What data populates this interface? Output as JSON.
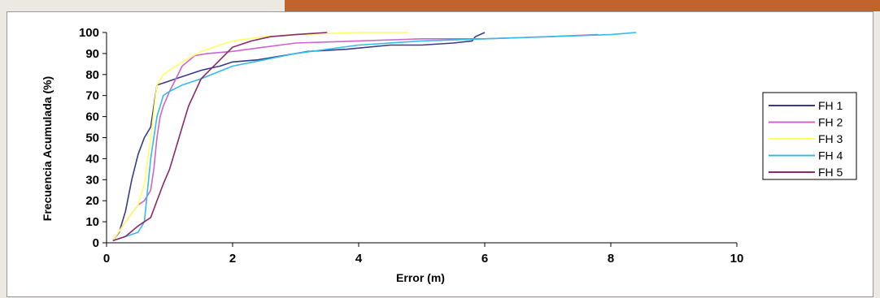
{
  "chart_data": {
    "type": "line",
    "title": "",
    "xlabel": "Error (m)",
    "ylabel": "Frecuencia Acumulada (%)",
    "xlim": [
      0,
      10
    ],
    "ylim": [
      0,
      100
    ],
    "xticks": [
      "0",
      "2",
      "4",
      "6",
      "8",
      "10"
    ],
    "yticks": [
      "0",
      "10",
      "20",
      "30",
      "40",
      "50",
      "60",
      "70",
      "80",
      "90",
      "100"
    ],
    "grid": false,
    "legend_position": "right",
    "series": [
      {
        "name": "FH 1",
        "color": "#3a3a8c",
        "x": [
          0.1,
          0.2,
          0.3,
          0.4,
          0.5,
          0.6,
          0.7,
          0.8,
          0.9,
          1.0,
          1.2,
          1.5,
          1.8,
          2.0,
          2.4,
          2.8,
          3.2,
          3.8,
          4.5,
          5.0,
          5.5,
          5.8,
          5.85,
          6.0
        ],
        "y": [
          1,
          5,
          15,
          30,
          42,
          50,
          55,
          75,
          76,
          77,
          79,
          82,
          84,
          86,
          87,
          89,
          91,
          92,
          94,
          94,
          95,
          96,
          98,
          100
        ]
      },
      {
        "name": "FH 2",
        "color": "#cc66cc",
        "x": [
          0.1,
          0.3,
          0.5,
          0.6,
          0.7,
          0.75,
          0.8,
          0.85,
          0.9,
          1.0,
          1.1,
          1.2,
          1.4,
          1.6,
          2.0,
          2.5,
          3.0,
          4.0,
          5.0,
          6.0,
          7.0,
          7.8
        ],
        "y": [
          1,
          10,
          18,
          20,
          25,
          35,
          50,
          60,
          65,
          72,
          78,
          84,
          89,
          90,
          91,
          93,
          95,
          96,
          97,
          97,
          98,
          99
        ]
      },
      {
        "name": "FH 3",
        "color": "#ffff66",
        "x": [
          0.1,
          0.3,
          0.5,
          0.6,
          0.7,
          0.8,
          0.9,
          1.0,
          1.2,
          1.5,
          1.8,
          2.0,
          2.5,
          3.0,
          4.0,
          4.8
        ],
        "y": [
          1,
          10,
          18,
          28,
          50,
          75,
          80,
          82,
          86,
          91,
          94,
          96,
          98,
          99,
          100,
          100
        ]
      },
      {
        "name": "FH 4",
        "color": "#33bbee",
        "x": [
          0.1,
          0.3,
          0.5,
          0.6,
          0.7,
          0.8,
          0.9,
          1.0,
          1.2,
          1.5,
          2.0,
          2.5,
          3.0,
          4.0,
          5.0,
          6.0,
          7.0,
          8.0,
          8.4
        ],
        "y": [
          1,
          3,
          5,
          10,
          40,
          60,
          70,
          72,
          75,
          78,
          84,
          87,
          90,
          94,
          96,
          97,
          98,
          99,
          100
        ]
      },
      {
        "name": "FH 5",
        "color": "#8a2a6a",
        "x": [
          0.1,
          0.3,
          0.5,
          0.6,
          0.7,
          0.8,
          0.9,
          1.0,
          1.1,
          1.2,
          1.3,
          1.5,
          1.8,
          2.0,
          2.3,
          2.6,
          3.0,
          3.5
        ],
        "y": [
          1,
          3,
          8,
          10,
          12,
          20,
          28,
          35,
          45,
          55,
          65,
          78,
          87,
          93,
          96,
          98,
          99,
          100
        ]
      }
    ]
  }
}
